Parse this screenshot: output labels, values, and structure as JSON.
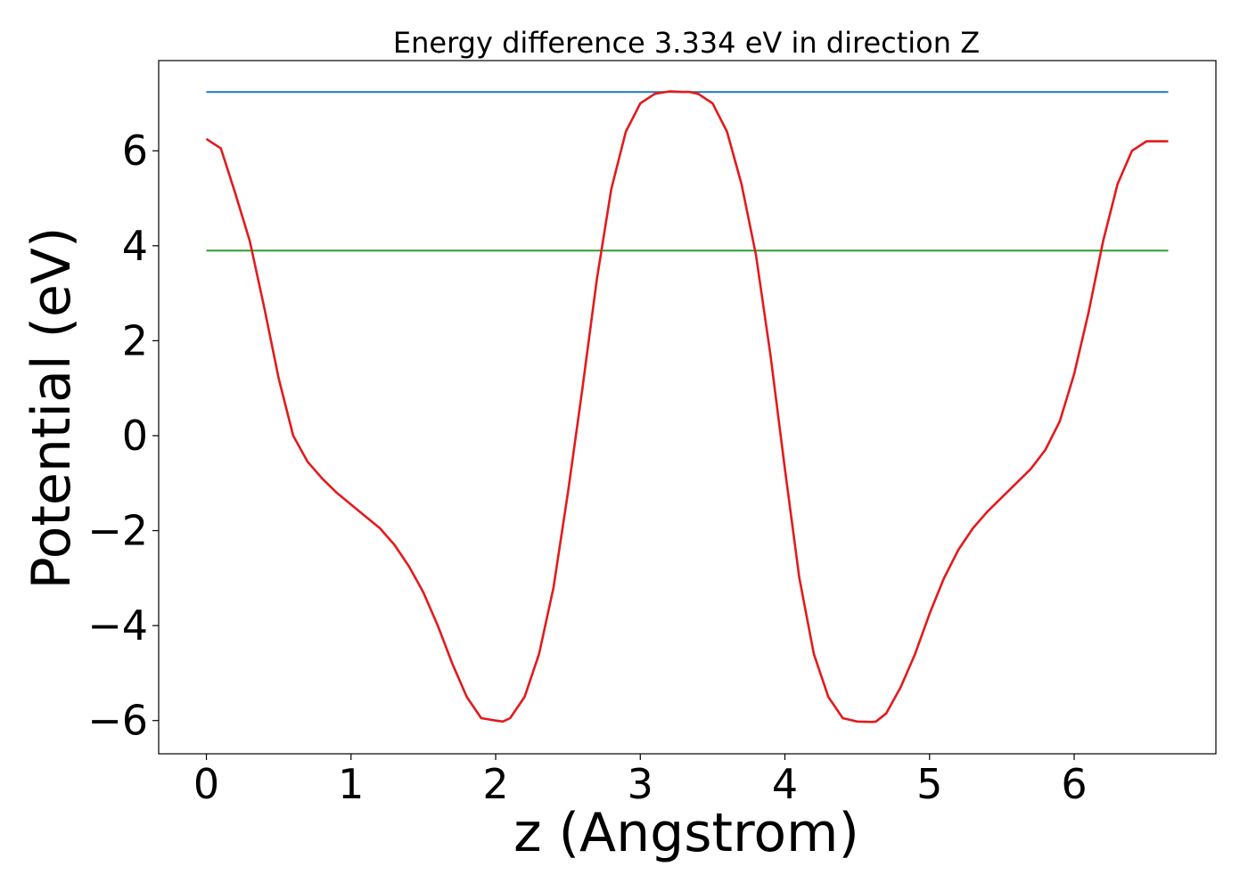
{
  "chart_data": {
    "type": "line",
    "title": "Energy difference 3.334 eV in direction Z",
    "xlabel": "z (Angstrom)",
    "ylabel": "Potential (eV)",
    "xlim": [
      -0.33,
      6.98
    ],
    "ylim": [
      -6.7,
      7.9
    ],
    "xticks": [
      0,
      1,
      2,
      3,
      4,
      5,
      6
    ],
    "xtick_labels": [
      "0",
      "1",
      "2",
      "3",
      "4",
      "5",
      "6"
    ],
    "yticks": [
      -6,
      -4,
      -2,
      0,
      2,
      4,
      6
    ],
    "ytick_labels": [
      "−6",
      "−4",
      "−2",
      "0",
      "2",
      "4",
      "6"
    ],
    "grid": false,
    "series": [
      {
        "color": "#1f77b4",
        "x": [
          0,
          6.65
        ],
        "y": [
          7.24,
          7.24
        ]
      },
      {
        "color": "#2ca02c",
        "x": [
          0,
          6.65
        ],
        "y": [
          3.9,
          3.9
        ]
      },
      {
        "color": "#e31a1c",
        "x": [
          0,
          0.1,
          0.2,
          0.3,
          0.4,
          0.5,
          0.6,
          0.7,
          0.8,
          0.9,
          1.0,
          1.1,
          1.2,
          1.3,
          1.4,
          1.5,
          1.6,
          1.7,
          1.8,
          1.9,
          2.0,
          2.05,
          2.1,
          2.2,
          2.3,
          2.4,
          2.5,
          2.6,
          2.7,
          2.8,
          2.9,
          3.0,
          3.1,
          3.2,
          3.3,
          3.34,
          3.4,
          3.5,
          3.6,
          3.7,
          3.8,
          3.9,
          4.0,
          4.1,
          4.2,
          4.3,
          4.4,
          4.5,
          4.6,
          4.63,
          4.7,
          4.8,
          4.9,
          5.0,
          5.1,
          5.2,
          5.3,
          5.4,
          5.5,
          5.6,
          5.7,
          5.8,
          5.9,
          6.0,
          6.1,
          6.2,
          6.3,
          6.4,
          6.5,
          6.6,
          6.65
        ],
        "y": [
          6.25,
          6.05,
          5.1,
          4.1,
          2.7,
          1.2,
          0.0,
          -0.55,
          -0.9,
          -1.2,
          -1.45,
          -1.7,
          -1.95,
          -2.3,
          -2.75,
          -3.3,
          -4.0,
          -4.8,
          -5.5,
          -5.95,
          -6.0,
          -6.02,
          -5.95,
          -5.5,
          -4.6,
          -3.2,
          -1.2,
          1.0,
          3.3,
          5.2,
          6.4,
          7.0,
          7.2,
          7.25,
          7.24,
          7.24,
          7.2,
          7.0,
          6.4,
          5.3,
          3.8,
          1.7,
          -0.7,
          -3.0,
          -4.6,
          -5.5,
          -5.95,
          -6.02,
          -6.03,
          -6.02,
          -5.85,
          -5.3,
          -4.6,
          -3.75,
          -3.0,
          -2.4,
          -1.95,
          -1.6,
          -1.3,
          -1.0,
          -0.7,
          -0.3,
          0.3,
          1.3,
          2.6,
          4.1,
          5.3,
          6.0,
          6.2,
          6.2,
          6.2
        ]
      }
    ]
  }
}
